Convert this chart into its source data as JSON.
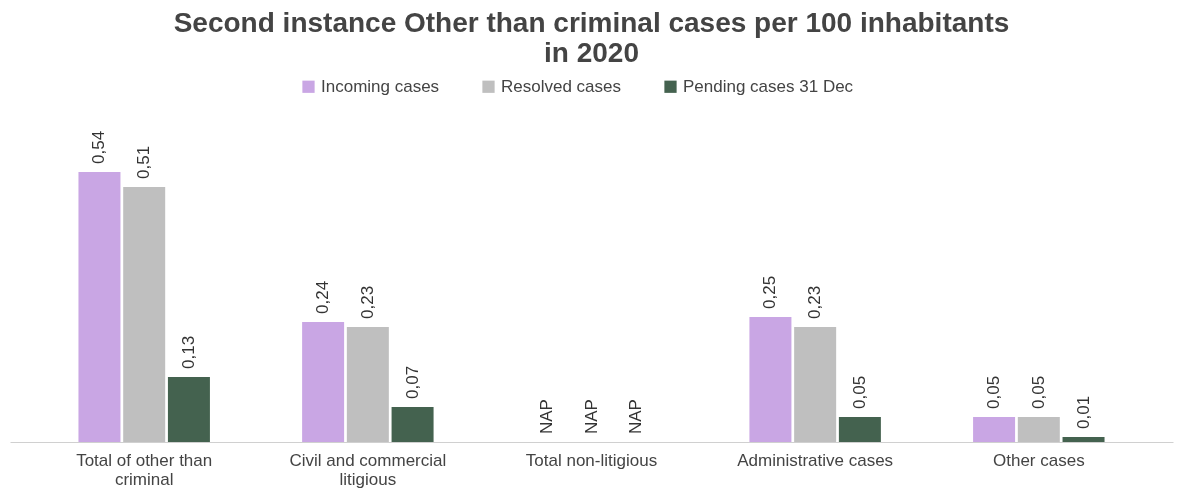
{
  "chart_data": {
    "type": "bar",
    "title": "Second instance Other than criminal cases per 100 inhabitants in 2020",
    "categories": [
      "Total of other than criminal",
      "Civil and commercial litigious",
      "Total non-litigious",
      "Administrative cases",
      "Other cases"
    ],
    "series": [
      {
        "name": "Incoming cases",
        "color": "#c9a6e4",
        "values": [
          0.54,
          0.24,
          null,
          0.25,
          0.05
        ],
        "value_labels": [
          "0,54",
          "0,24",
          "NAP",
          "0,25",
          "0,05"
        ]
      },
      {
        "name": "Resolved cases",
        "color": "#bfbfbf",
        "values": [
          0.51,
          0.23,
          null,
          0.23,
          0.05
        ],
        "value_labels": [
          "0,51",
          "0,23",
          "NAP",
          "0,23",
          "0,05"
        ]
      },
      {
        "name": "Pending cases 31 Dec",
        "color": "#44624f",
        "values": [
          0.13,
          0.07,
          null,
          0.05,
          0.01
        ],
        "value_labels": [
          "0,13",
          "0,07",
          "NAP",
          "0,05",
          "0,01"
        ]
      }
    ],
    "grid": false,
    "legend": "top"
  }
}
